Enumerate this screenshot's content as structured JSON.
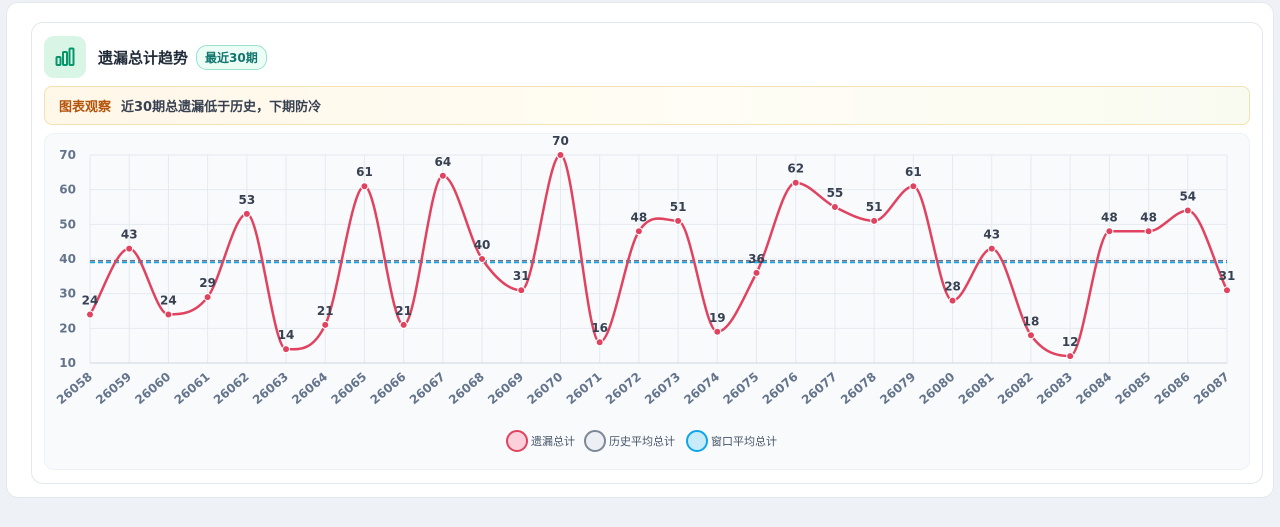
{
  "header": {
    "title": "遗漏总计趋势",
    "badge": "最近30期",
    "icon": "bar-chart-icon"
  },
  "insight": {
    "label": "图表观察",
    "text": "近30期总遗漏低于历史，下期防冷"
  },
  "colors": {
    "series_line": "#e0425f",
    "history_avg": "#64748b",
    "window_avg": "#0ea5e9",
    "accent": "#059669"
  },
  "chart_data": {
    "type": "line",
    "title": "",
    "xlabel": "",
    "ylabel": "",
    "ylim": [
      10,
      70
    ],
    "yticks": [
      10,
      20,
      30,
      40,
      50,
      60,
      70
    ],
    "grid": true,
    "legend_position": "bottom",
    "categories": [
      "26058",
      "26059",
      "26060",
      "26061",
      "26062",
      "26063",
      "26064",
      "26065",
      "26066",
      "26067",
      "26068",
      "26069",
      "26070",
      "26071",
      "26072",
      "26073",
      "26074",
      "26075",
      "26076",
      "26077",
      "26078",
      "26079",
      "26080",
      "26081",
      "26082",
      "26083",
      "26084",
      "26085",
      "26086",
      "26087"
    ],
    "series": [
      {
        "name": "遗漏总计",
        "values": [
          24,
          43,
          24,
          29,
          53,
          14,
          21,
          61,
          21,
          64,
          40,
          31,
          70,
          16,
          48,
          51,
          19,
          36,
          62,
          55,
          51,
          61,
          28,
          43,
          18,
          12,
          48,
          48,
          54,
          31
        ],
        "color": "#e0425f",
        "data_labels": true
      },
      {
        "name": "历史平均总计",
        "value": 39.5,
        "color": "#64748b",
        "style": "dashed"
      },
      {
        "name": "窗口平均总计",
        "value": 39,
        "color": "#0ea5e9",
        "style": "dashed"
      }
    ]
  }
}
